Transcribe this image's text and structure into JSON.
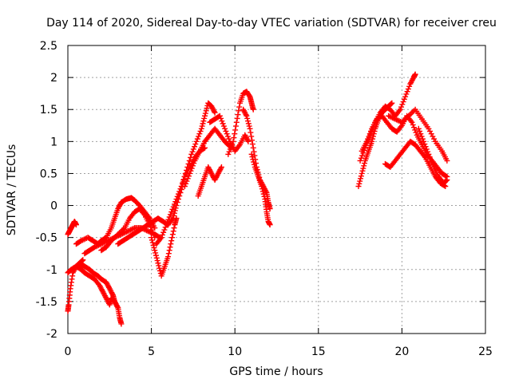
{
  "chart_data": {
    "type": "scatter",
    "title": "Day 114 of 2020, Sidereal Day-to-day VTEC variation (SDTVAR) for receiver creu",
    "xlabel": "GPS time / hours",
    "ylabel": "SDTVAR / TECUs",
    "xlim": [
      0,
      25
    ],
    "ylim": [
      -2,
      2.5
    ],
    "xticks": [
      0,
      5,
      10,
      15,
      20,
      25
    ],
    "yticks": [
      -2,
      -1.5,
      -1,
      -0.5,
      0,
      0.5,
      1,
      1.5,
      2,
      2.5
    ],
    "grid": true,
    "marker": "+",
    "series": [
      {
        "name": "SDTVAR",
        "color": "#ff0000",
        "tracks": [
          {
            "x": [
              0.0,
              0.1,
              0.2,
              0.3,
              0.4,
              0.5
            ],
            "y": [
              -0.45,
              -0.4,
              -0.35,
              -0.3,
              -0.25,
              -0.3
            ]
          },
          {
            "x": [
              0.0,
              0.05,
              0.15,
              0.3,
              0.5,
              0.7,
              0.9
            ],
            "y": [
              -1.65,
              -1.55,
              -1.3,
              -1.05,
              -0.95,
              -0.9,
              -0.85
            ]
          },
          {
            "x": [
              0.0,
              0.2,
              0.5,
              0.8,
              1.0,
              1.3,
              1.5,
              1.8,
              2.0,
              2.3,
              2.5,
              2.7,
              2.8,
              3.0,
              3.1,
              3.2
            ],
            "y": [
              -1.05,
              -1.0,
              -0.95,
              -0.92,
              -0.95,
              -1.0,
              -1.05,
              -1.1,
              -1.15,
              -1.2,
              -1.3,
              -1.4,
              -1.5,
              -1.6,
              -1.75,
              -1.85
            ]
          },
          {
            "x": [
              0.5,
              0.8,
              1.0,
              1.3,
              1.6,
              1.9,
              2.1,
              2.3,
              2.5,
              2.6,
              2.8,
              3.0
            ],
            "y": [
              -0.95,
              -1.0,
              -1.05,
              -1.1,
              -1.15,
              -1.25,
              -1.35,
              -1.45,
              -1.55,
              -1.45,
              -1.5,
              -1.6
            ]
          },
          {
            "x": [
              0.5,
              0.8,
              1.2,
              1.5,
              1.8,
              2.0,
              2.3,
              2.6,
              2.8,
              3.0,
              3.2,
              3.5,
              3.8,
              4.0,
              4.3,
              4.6,
              4.9,
              5.2
            ],
            "y": [
              -0.6,
              -0.55,
              -0.5,
              -0.55,
              -0.6,
              -0.55,
              -0.5,
              -0.35,
              -0.2,
              -0.05,
              0.05,
              0.1,
              0.12,
              0.08,
              0.0,
              -0.1,
              -0.2,
              -0.35
            ]
          },
          {
            "x": [
              1.0,
              1.3,
              1.6,
              2.0,
              2.4,
              2.8,
              3.2,
              3.6,
              4.0,
              4.4,
              4.8,
              5.2,
              5.5
            ],
            "y": [
              -0.75,
              -0.7,
              -0.65,
              -0.6,
              -0.55,
              -0.5,
              -0.45,
              -0.4,
              -0.35,
              -0.35,
              -0.4,
              -0.45,
              -0.5
            ]
          },
          {
            "x": [
              2.0,
              2.3,
              2.6,
              3.0,
              3.4,
              3.7,
              4.0,
              4.3,
              4.6,
              4.9,
              5.2
            ],
            "y": [
              -0.7,
              -0.65,
              -0.55,
              -0.45,
              -0.35,
              -0.2,
              -0.1,
              -0.05,
              -0.15,
              -0.3,
              -0.5
            ]
          },
          {
            "x": [
              3.0,
              3.3,
              3.6,
              3.9,
              4.2,
              4.5,
              4.8,
              5.1,
              5.4,
              5.7,
              6.0
            ],
            "y": [
              -0.6,
              -0.55,
              -0.5,
              -0.45,
              -0.4,
              -0.35,
              -0.3,
              -0.25,
              -0.2,
              -0.25,
              -0.3
            ]
          },
          {
            "x": [
              5.0,
              5.2,
              5.4,
              5.6,
              5.8,
              6.0,
              6.2,
              6.4,
              6.5
            ],
            "y": [
              -0.5,
              -0.7,
              -0.9,
              -1.1,
              -0.95,
              -0.8,
              -0.55,
              -0.3,
              -0.2
            ]
          },
          {
            "x": [
              5.3,
              5.6,
              5.9,
              6.2,
              6.5,
              6.8,
              7.1,
              7.4,
              7.7,
              8.0,
              8.2,
              8.4,
              8.6,
              8.8
            ],
            "y": [
              -0.6,
              -0.5,
              -0.3,
              -0.1,
              0.1,
              0.3,
              0.55,
              0.8,
              1.0,
              1.2,
              1.4,
              1.6,
              1.55,
              1.45
            ]
          },
          {
            "x": [
              6.0,
              6.3,
              6.5,
              6.8,
              7.0,
              7.3,
              7.6,
              7.9,
              8.2
            ],
            "y": [
              -0.3,
              -0.2,
              0.0,
              0.25,
              0.45,
              0.6,
              0.75,
              0.85,
              0.9
            ]
          },
          {
            "x": [
              7.0,
              7.3,
              7.6,
              7.9,
              8.2,
              8.5,
              8.8,
              9.1,
              9.4,
              9.6,
              9.8
            ],
            "y": [
              0.3,
              0.5,
              0.7,
              0.85,
              1.0,
              1.1,
              1.2,
              1.1,
              1.0,
              0.95,
              0.9
            ]
          },
          {
            "x": [
              7.8,
              8.0,
              8.2,
              8.4,
              8.6,
              8.8,
              9.0,
              9.2
            ],
            "y": [
              0.15,
              0.3,
              0.45,
              0.6,
              0.5,
              0.4,
              0.5,
              0.6
            ]
          },
          {
            "x": [
              8.5,
              8.8,
              9.1,
              9.4,
              9.7,
              10.0,
              10.3,
              10.6,
              10.8
            ],
            "y": [
              1.3,
              1.35,
              1.4,
              1.2,
              1.0,
              0.85,
              0.95,
              1.1,
              1.0
            ]
          },
          {
            "x": [
              9.6,
              9.9,
              10.1,
              10.3,
              10.5,
              10.7,
              10.9,
              11.0,
              11.1
            ],
            "y": [
              0.8,
              1.0,
              1.3,
              1.6,
              1.75,
              1.78,
              1.7,
              1.6,
              1.5
            ]
          },
          {
            "x": [
              10.5,
              10.7,
              10.9,
              11.1,
              11.3,
              11.5,
              11.7,
              11.9,
              12.0,
              12.1
            ],
            "y": [
              1.5,
              1.4,
              1.2,
              0.9,
              0.6,
              0.4,
              0.3,
              0.2,
              0.05,
              -0.05
            ]
          },
          {
            "x": [
              11.0,
              11.2,
              11.4,
              11.6,
              11.8,
              11.9,
              12.0,
              12.1
            ],
            "y": [
              0.8,
              0.6,
              0.45,
              0.3,
              0.1,
              -0.1,
              -0.25,
              -0.3
            ]
          },
          {
            "x": [
              17.4,
              17.6,
              17.8,
              18.0,
              18.2,
              18.4,
              18.6,
              18.8,
              19.0,
              19.2,
              19.4
            ],
            "y": [
              0.3,
              0.5,
              0.7,
              0.85,
              1.0,
              1.2,
              1.35,
              1.45,
              1.5,
              1.55,
              1.6
            ]
          },
          {
            "x": [
              17.5,
              17.8,
              18.1,
              18.4,
              18.7,
              19.0,
              19.3,
              19.6,
              19.9,
              20.2,
              20.5,
              20.7,
              20.8
            ],
            "y": [
              0.7,
              0.9,
              1.1,
              1.3,
              1.45,
              1.55,
              1.5,
              1.4,
              1.5,
              1.7,
              1.9,
              2.0,
              2.05
            ]
          },
          {
            "x": [
              17.6,
              17.9,
              18.2,
              18.5,
              18.8,
              19.1,
              19.4,
              19.7,
              20.0,
              20.3,
              20.6,
              20.9,
              21.2,
              21.5,
              21.8,
              22.1,
              22.4,
              22.7
            ],
            "y": [
              0.85,
              1.0,
              1.2,
              1.35,
              1.4,
              1.3,
              1.2,
              1.15,
              1.25,
              1.4,
              1.3,
              1.1,
              0.95,
              0.8,
              0.7,
              0.6,
              0.5,
              0.45
            ]
          },
          {
            "x": [
              19.0,
              19.3,
              19.6,
              19.9,
              20.2,
              20.5,
              20.8,
              21.1,
              21.4,
              21.7,
              22.0,
              22.3,
              22.6
            ],
            "y": [
              0.65,
              0.6,
              0.7,
              0.8,
              0.9,
              1.0,
              0.95,
              0.85,
              0.75,
              0.6,
              0.45,
              0.35,
              0.3
            ]
          },
          {
            "x": [
              19.2,
              19.6,
              20.0,
              20.4,
              20.8,
              21.2,
              21.6,
              22.0,
              22.4,
              22.7
            ],
            "y": [
              1.4,
              1.35,
              1.3,
              1.4,
              1.5,
              1.35,
              1.2,
              1.0,
              0.85,
              0.7
            ]
          },
          {
            "x": [
              21.0,
              21.3,
              21.6,
              21.9,
              22.2,
              22.5,
              22.7
            ],
            "y": [
              1.2,
              1.0,
              0.8,
              0.6,
              0.45,
              0.35,
              0.4
            ]
          }
        ]
      }
    ]
  }
}
